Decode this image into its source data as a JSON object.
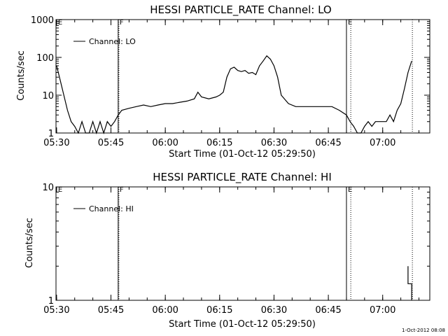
{
  "footer": {
    "timestamp": "1-Oct-2012 08:08"
  },
  "chart_data": [
    {
      "type": "line",
      "title": "HESSI PARTICLE_RATE Channel: LO",
      "xlabel": "Start Time (01-Oct-12 05:29:50)",
      "ylabel": "Counts/sec",
      "y_scale": "log",
      "ylim": [
        1,
        1000
      ],
      "xlim": [
        "05:30",
        "07:13"
      ],
      "x_ticks": [
        "05:30",
        "05:45",
        "06:00",
        "06:15",
        "06:30",
        "06:45",
        "07:00"
      ],
      "y_ticks": [
        "1",
        "10",
        "100",
        "1000"
      ],
      "legend": {
        "position": "top-left",
        "entries": [
          "Channel: LO"
        ]
      },
      "markers": [
        {
          "label": "E",
          "time": "05:30"
        },
        {
          "label": "F",
          "time": "05:47"
        },
        {
          "label": "E",
          "time": "06:50"
        }
      ],
      "dotted_lines": [
        "05:47",
        "06:51",
        "07:08"
      ],
      "series": [
        {
          "name": "Channel: LO",
          "x": [
            "05:30",
            "05:31",
            "05:32",
            "05:33",
            "05:34",
            "05:35",
            "05:36",
            "05:37",
            "05:38",
            "05:39",
            "05:40",
            "05:41",
            "05:42",
            "05:43",
            "05:44",
            "05:45",
            "05:46",
            "05:47",
            "05:48",
            "05:50",
            "05:52",
            "05:54",
            "05:56",
            "05:58",
            "06:00",
            "06:02",
            "06:04",
            "06:06",
            "06:08",
            "06:09",
            "06:10",
            "06:12",
            "06:14",
            "06:15",
            "06:16",
            "06:17",
            "06:18",
            "06:19",
            "06:20",
            "06:21",
            "06:22",
            "06:23",
            "06:24",
            "06:25",
            "06:26",
            "06:27",
            "06:28",
            "06:29",
            "06:30",
            "06:31",
            "06:32",
            "06:34",
            "06:36",
            "06:38",
            "06:40",
            "06:42",
            "06:44",
            "06:46",
            "06:48",
            "06:50",
            "06:51",
            "06:52",
            "06:53",
            "06:54",
            "06:55",
            "06:56",
            "06:57",
            "06:58",
            "06:59",
            "07:00",
            "07:01",
            "07:02",
            "07:03",
            "07:04",
            "07:05",
            "07:06",
            "07:07",
            "07:08"
          ],
          "values": [
            60,
            25,
            10,
            4,
            2,
            1.5,
            1,
            2,
            1,
            1,
            2,
            1,
            2,
            1,
            2,
            1.5,
            2,
            3,
            4,
            4.5,
            5,
            5.5,
            5,
            5.5,
            6,
            6,
            6.5,
            7,
            8,
            12,
            9,
            8,
            9,
            10,
            12,
            30,
            50,
            55,
            45,
            42,
            45,
            38,
            40,
            35,
            60,
            80,
            110,
            90,
            60,
            30,
            10,
            6,
            5,
            5,
            5,
            5,
            5,
            5,
            4,
            3,
            2,
            1.5,
            1,
            1,
            1.5,
            2,
            1.5,
            2,
            2,
            2,
            2,
            3,
            2,
            4,
            6,
            15,
            40,
            80
          ]
        }
      ]
    },
    {
      "type": "line",
      "title": "HESSI PARTICLE_RATE Channel: HI",
      "xlabel": "Start Time (01-Oct-12 05:29:50)",
      "ylabel": "Counts/sec",
      "y_scale": "log",
      "ylim": [
        1,
        10
      ],
      "xlim": [
        "05:30",
        "07:13"
      ],
      "x_ticks": [
        "05:30",
        "05:45",
        "06:00",
        "06:15",
        "06:30",
        "06:45",
        "07:00"
      ],
      "y_ticks": [
        "1",
        "10"
      ],
      "legend": {
        "position": "top-left",
        "entries": [
          "Channel: HI"
        ]
      },
      "markers": [
        {
          "label": "E",
          "time": "05:30"
        },
        {
          "label": "F",
          "time": "05:47"
        },
        {
          "label": "E",
          "time": "06:50"
        }
      ],
      "dotted_lines": [
        "05:47",
        "06:51",
        "07:08"
      ],
      "series": [
        {
          "name": "Channel: HI",
          "x": [
            "07:07",
            "07:07",
            "07:08",
            "07:08"
          ],
          "values": [
            2,
            1.4,
            1.4,
            1
          ]
        }
      ]
    }
  ]
}
